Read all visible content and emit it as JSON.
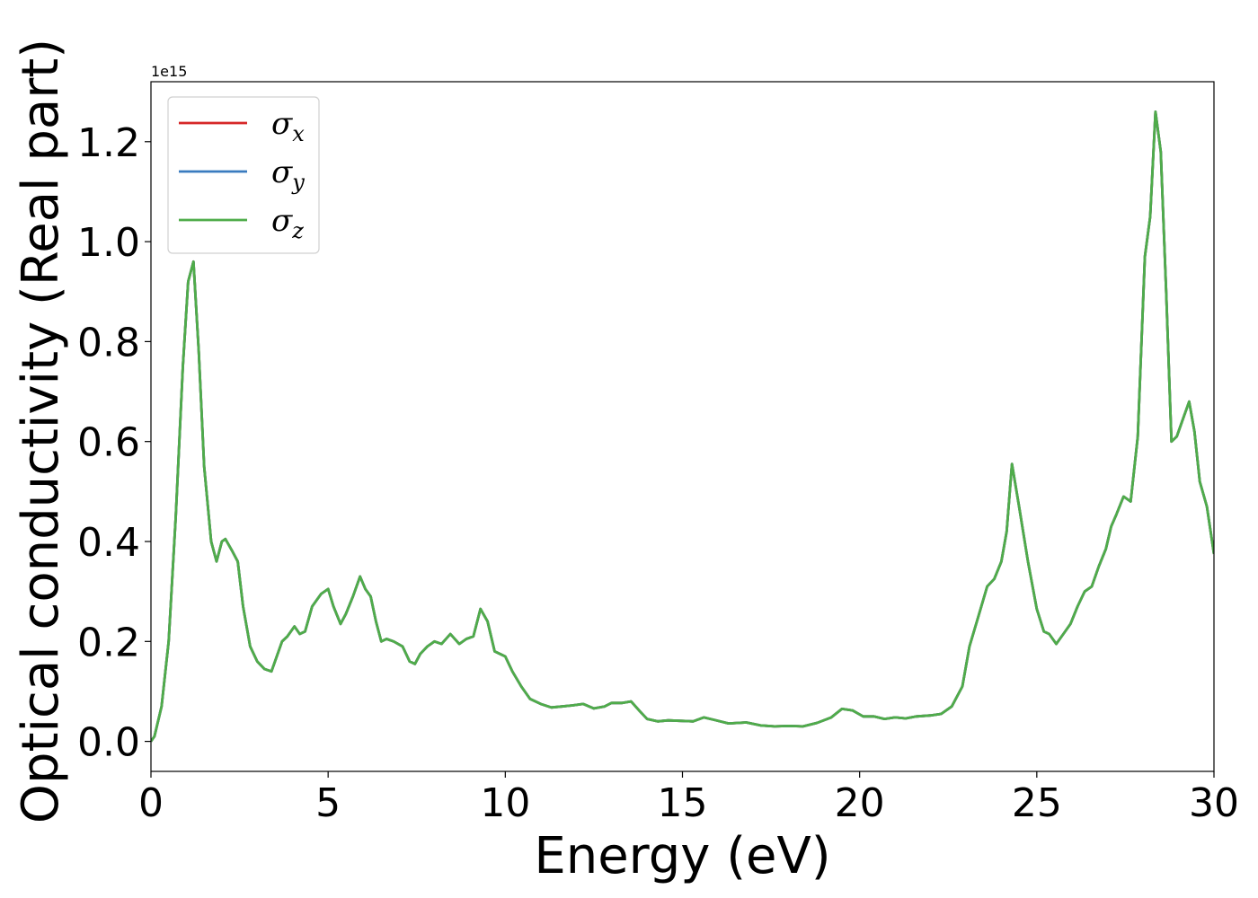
{
  "chart_data": {
    "type": "line",
    "title": "",
    "xlabel": "Energy (eV)",
    "ylabel": "Optical conductivity (Real part)",
    "y_offset_text": "1e15",
    "y_multiplier": 1000000000000000.0,
    "xlim": [
      0,
      30
    ],
    "ylim": [
      -0.06,
      1.32
    ],
    "x_ticks": [
      0,
      5,
      10,
      15,
      20,
      25,
      30
    ],
    "x_tick_labels": [
      "0",
      "5",
      "10",
      "15",
      "20",
      "25",
      "30"
    ],
    "y_ticks": [
      0.0,
      0.2,
      0.4,
      0.6,
      0.8,
      1.0,
      1.2
    ],
    "y_tick_labels": [
      "0.0",
      "0.2",
      "0.4",
      "0.6",
      "0.8",
      "1.0",
      "1.2"
    ],
    "grid": false,
    "legend_position": "top-left",
    "series": [
      {
        "name": "σx",
        "symbol": "σ",
        "subscript": "x",
        "color": "#d62728"
      },
      {
        "name": "σy",
        "symbol": "σ",
        "subscript": "y",
        "color": "#3a7bbf"
      },
      {
        "name": "σz",
        "symbol": "σ",
        "subscript": "z",
        "color": "#4fac4a"
      }
    ],
    "x": [
      0,
      0.1,
      0.3,
      0.5,
      0.7,
      0.9,
      1.05,
      1.2,
      1.35,
      1.5,
      1.7,
      1.85,
      2.0,
      2.1,
      2.3,
      2.45,
      2.6,
      2.8,
      3.0,
      3.2,
      3.4,
      3.55,
      3.7,
      3.85,
      4.05,
      4.2,
      4.35,
      4.55,
      4.8,
      5.0,
      5.15,
      5.35,
      5.5,
      5.7,
      5.9,
      6.05,
      6.2,
      6.35,
      6.5,
      6.65,
      6.85,
      7.1,
      7.3,
      7.45,
      7.6,
      7.8,
      8.0,
      8.2,
      8.45,
      8.7,
      8.9,
      9.1,
      9.3,
      9.5,
      9.7,
      9.85,
      10.0,
      10.2,
      10.45,
      10.7,
      11.0,
      11.3,
      11.6,
      11.9,
      12.2,
      12.5,
      12.8,
      13.0,
      13.3,
      13.55,
      13.8,
      14.0,
      14.3,
      14.6,
      15.0,
      15.3,
      15.6,
      15.9,
      16.3,
      16.8,
      17.2,
      17.6,
      18.0,
      18.4,
      18.8,
      19.2,
      19.5,
      19.8,
      20.1,
      20.4,
      20.7,
      21.0,
      21.3,
      21.6,
      22.0,
      22.3,
      22.6,
      22.9,
      23.1,
      23.35,
      23.6,
      23.8,
      24.0,
      24.15,
      24.3,
      24.5,
      24.75,
      25.0,
      25.2,
      25.35,
      25.55,
      25.75,
      25.95,
      26.15,
      26.35,
      26.55,
      26.75,
      26.95,
      27.1,
      27.25,
      27.45,
      27.65,
      27.85,
      28.05,
      28.2,
      28.35,
      28.5,
      28.65,
      28.8,
      28.95,
      29.1,
      29.3,
      29.45,
      29.6,
      29.8,
      30.0
    ],
    "values": [
      0.0,
      0.01,
      0.07,
      0.2,
      0.45,
      0.75,
      0.92,
      0.96,
      0.78,
      0.55,
      0.4,
      0.36,
      0.4,
      0.405,
      0.38,
      0.36,
      0.27,
      0.19,
      0.16,
      0.145,
      0.14,
      0.17,
      0.2,
      0.21,
      0.23,
      0.215,
      0.22,
      0.27,
      0.295,
      0.305,
      0.27,
      0.235,
      0.255,
      0.29,
      0.33,
      0.305,
      0.29,
      0.24,
      0.2,
      0.205,
      0.2,
      0.19,
      0.16,
      0.155,
      0.175,
      0.19,
      0.2,
      0.195,
      0.215,
      0.195,
      0.205,
      0.21,
      0.265,
      0.24,
      0.18,
      0.175,
      0.17,
      0.14,
      0.11,
      0.085,
      0.075,
      0.068,
      0.07,
      0.072,
      0.075,
      0.066,
      0.07,
      0.077,
      0.077,
      0.08,
      0.06,
      0.045,
      0.04,
      0.042,
      0.041,
      0.04,
      0.048,
      0.043,
      0.036,
      0.038,
      0.032,
      0.03,
      0.031,
      0.03,
      0.037,
      0.048,
      0.065,
      0.062,
      0.05,
      0.05,
      0.045,
      0.048,
      0.046,
      0.05,
      0.052,
      0.055,
      0.07,
      0.11,
      0.19,
      0.25,
      0.31,
      0.325,
      0.36,
      0.42,
      0.555,
      0.47,
      0.36,
      0.265,
      0.22,
      0.215,
      0.195,
      0.215,
      0.235,
      0.27,
      0.3,
      0.31,
      0.35,
      0.385,
      0.43,
      0.455,
      0.49,
      0.48,
      0.61,
      0.97,
      1.05,
      1.26,
      1.18,
      0.9,
      0.6,
      0.61,
      0.64,
      0.68,
      0.62,
      0.52,
      0.47,
      0.375
    ]
  }
}
